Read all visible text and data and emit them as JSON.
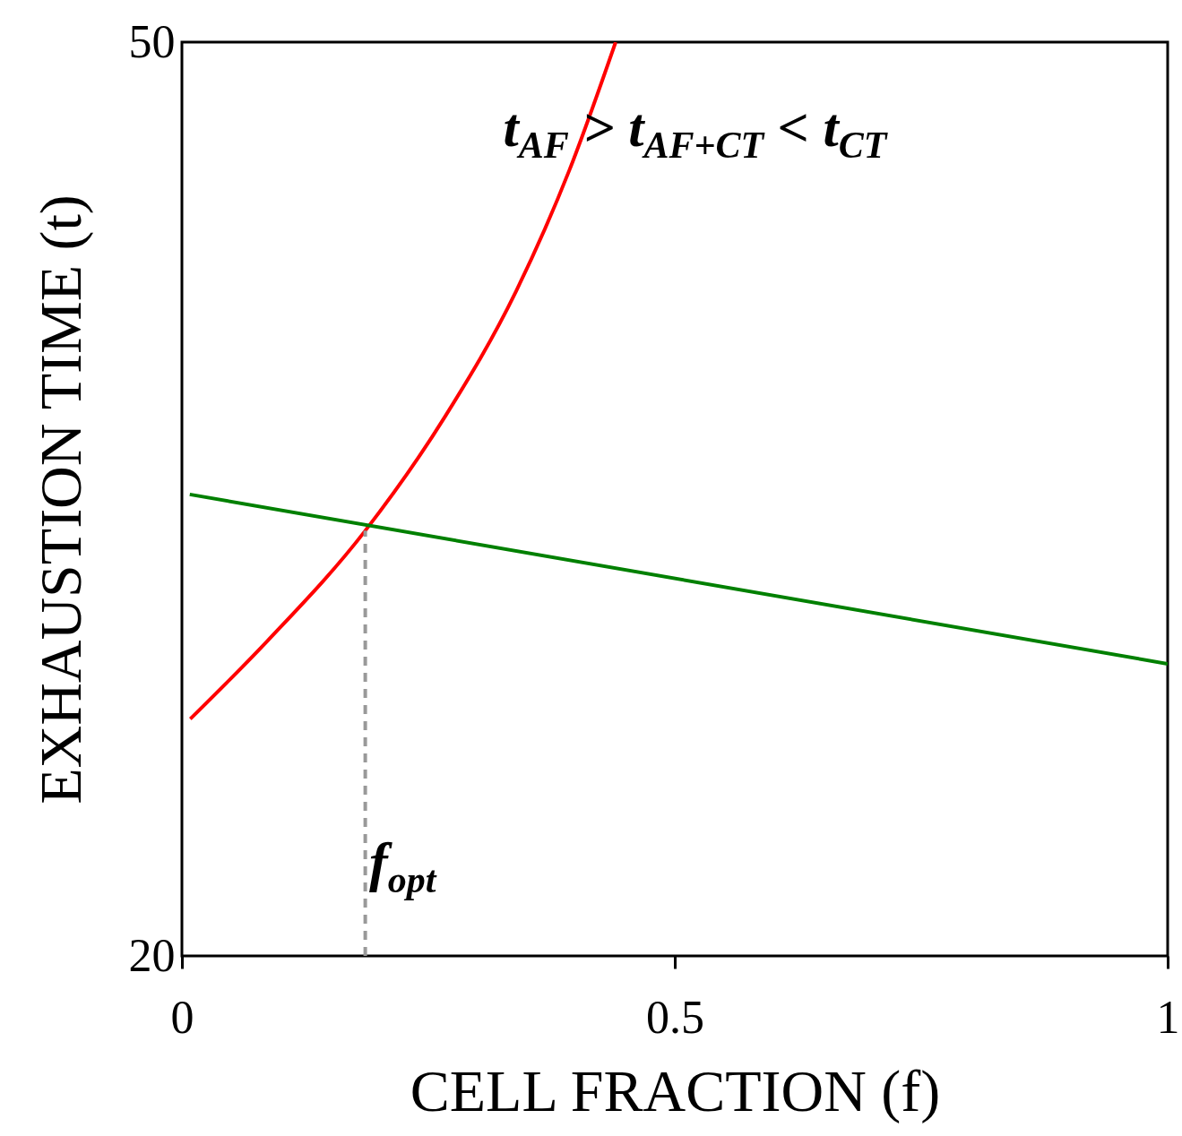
{
  "chart_data": {
    "type": "line",
    "xlabel": "CELL FRACTION (f)",
    "ylabel": "EXHAUSTION TIME (t)",
    "xlim": [
      0,
      1
    ],
    "ylim": [
      20,
      50
    ],
    "xticks": [
      0,
      0.5,
      1
    ],
    "yticks": [
      20,
      50
    ],
    "grid": false,
    "marker": "none",
    "series": [
      {
        "color": "#ff0000",
        "x": [
          0.0085,
          0.087,
          0.186,
          0.267,
          0.339,
          0.393,
          0.44
        ],
        "values": [
          27.78,
          30.35,
          33.96,
          37.71,
          41.82,
          45.79,
          50
        ]
      },
      {
        "color": "#008000",
        "x": [
          0.008,
          1.0
        ],
        "values": [
          35.15,
          29.59
        ]
      },
      {
        "color": "#999999",
        "line_style": "dashed",
        "x": [
          0.186,
          0.186
        ],
        "values": [
          20,
          33.96
        ]
      }
    ],
    "annotations": [
      "t$_{AF}$ > t$_{AF+CT}$ < t$_{CT}$",
      {
        "text": "f$_{opt}$",
        "x": 0.19,
        "y": 22.3
      }
    ]
  }
}
